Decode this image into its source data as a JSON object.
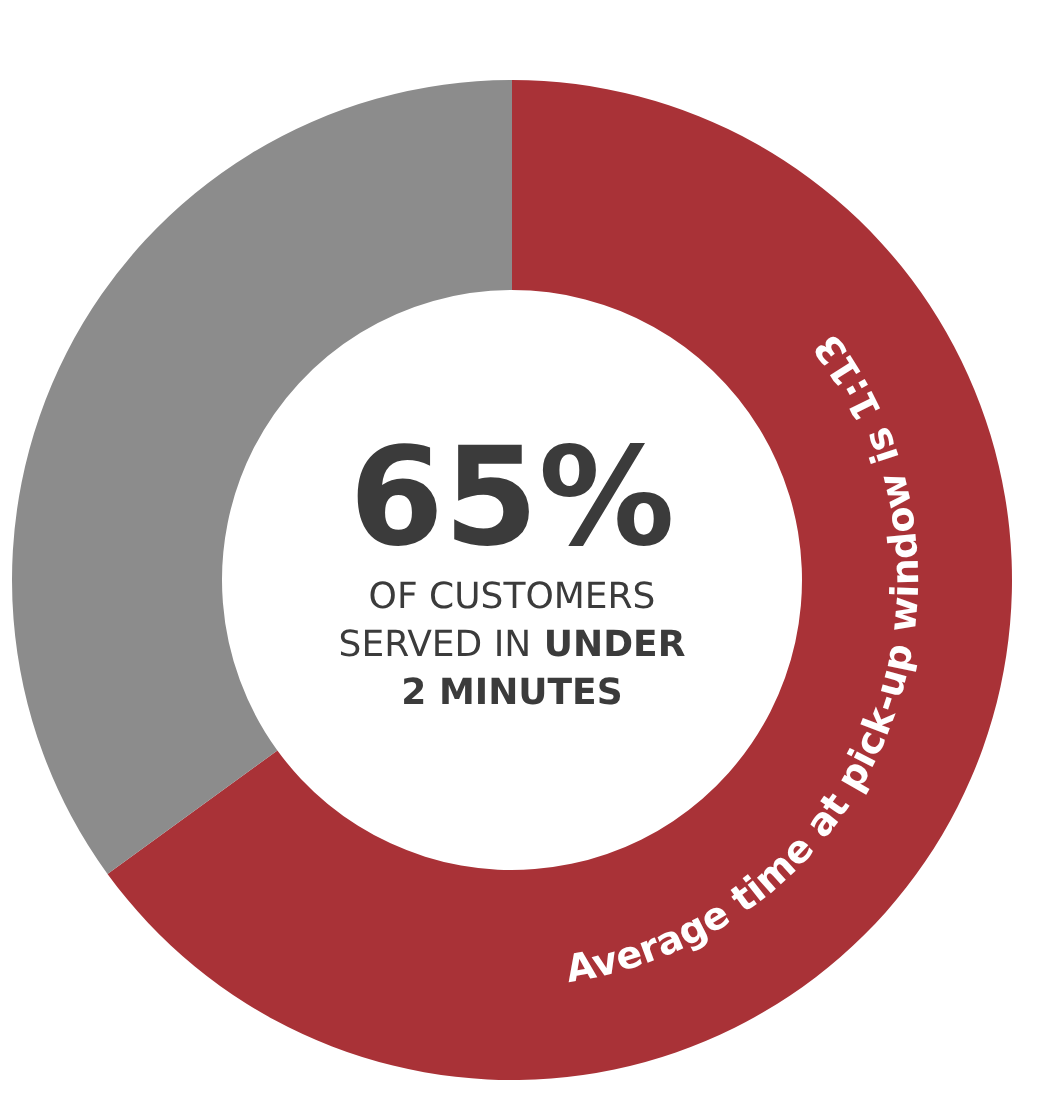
{
  "chart_data": {
    "type": "donut",
    "categories": [
      null,
      null
    ],
    "values": [
      65,
      35
    ],
    "colors": [
      "#a93237",
      "#8c8c8c"
    ],
    "value_labels": [
      "65%",
      null
    ],
    "annotations": [
      "OF CUSTOMERS SERVED IN",
      "UNDER 2 MINUTES",
      "Average time at pick-up window is 1:13"
    ]
  }
}
